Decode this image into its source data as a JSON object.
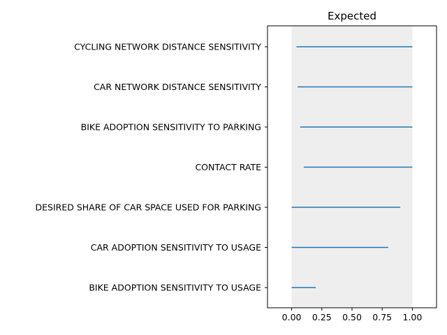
{
  "chart_data": {
    "type": "range",
    "title": "Expected",
    "xlabel": "",
    "ylabel": "",
    "xlim": [
      -0.2,
      1.2
    ],
    "xticks": [
      "0.00",
      "0.25",
      "0.50",
      "0.75",
      "1.00"
    ],
    "shaded_region": [
      0,
      1
    ],
    "series_color": "#1f77b4",
    "shade_color": "#eeeeee",
    "categories": [
      "CYCLING NETWORK DISTANCE SENSITIVITY",
      "CAR NETWORK DISTANCE SENSITIVITY",
      "BIKE ADOPTION SENSITIVITY TO PARKING",
      "CONTACT RATE",
      "DESIRED SHARE OF CAR SPACE USED FOR PARKING",
      "CAR ADOPTION SENSITIVITY TO USAGE",
      "BIKE ADOPTION SENSITIVITY TO USAGE"
    ],
    "ranges": [
      [
        0.04,
        1.0
      ],
      [
        0.05,
        1.0
      ],
      [
        0.07,
        1.0
      ],
      [
        0.1,
        1.0
      ],
      [
        0.0,
        0.9
      ],
      [
        0.0,
        0.8
      ],
      [
        0.0,
        0.2
      ]
    ]
  }
}
